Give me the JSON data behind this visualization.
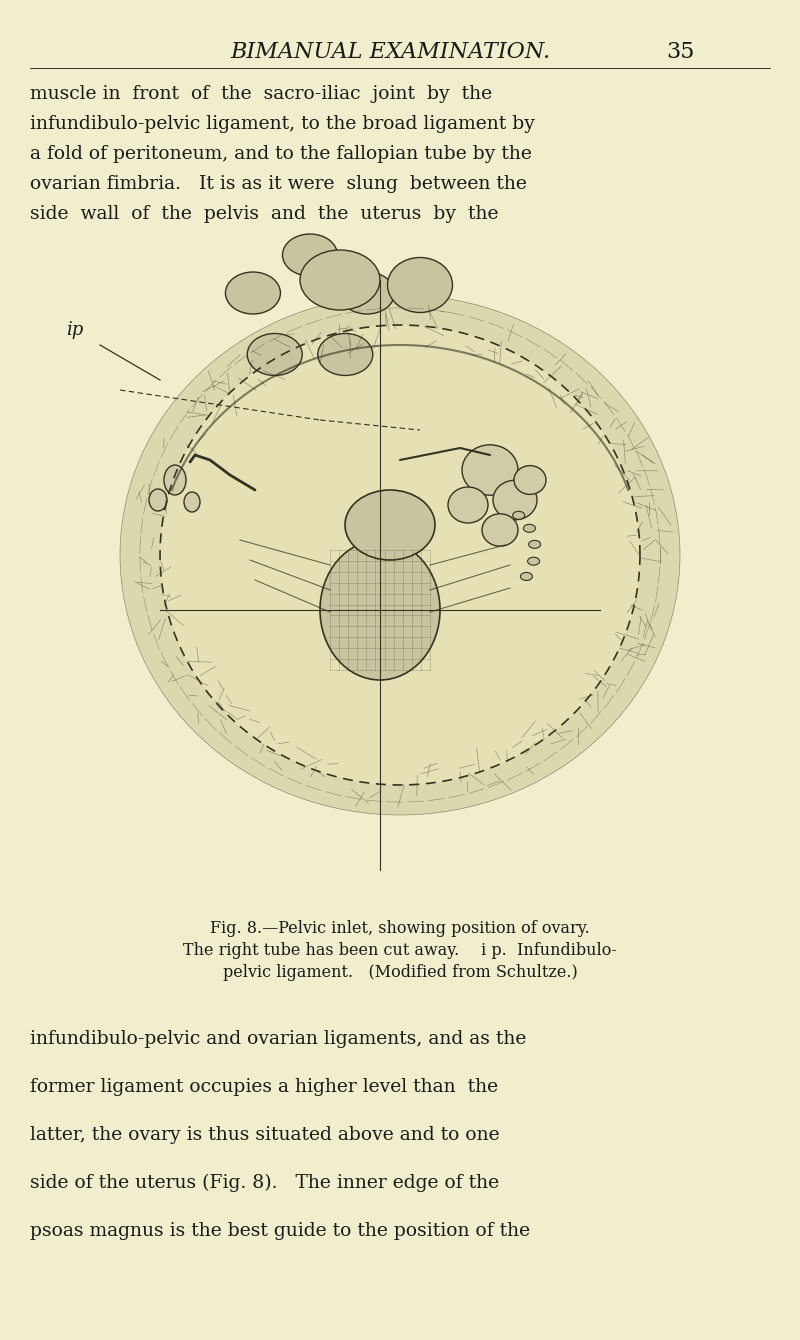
{
  "bg_color": "#f0eecc",
  "header_text": "BIMANUAL EXAMINATION.",
  "page_number": "35",
  "top_text_lines": [
    "muscle in  front  of  the  sacro-iliac  joint  by  the",
    "infundibulo-pelvic ligament, to the broad ligament by",
    "a fold of peritoneum, and to the fallopian tube by the",
    "ovarian fimbria.   It is as it were  slung  between the",
    "side  wall  of  the  pelvis  and  the  uterus  by  the"
  ],
  "caption_lines": [
    "Fig. 8.—Pelvic inlet, showing position of ovary.",
    "The right tube has been cut away.     i p.  Infundibulo-",
    "pelvic ligament.   (Modified from Schultze.)"
  ],
  "bottom_text_lines": [
    "infundibulo-pelvic and ovarian ligaments, and as the",
    "former ligament occupies a higher level than  the",
    "latter, the ovary is thus situated above and to one",
    "side of the uterus (Fig. 8).   The inner edge of the",
    "psoas magnus is the best guide to the position of the"
  ],
  "label_ip": "ip",
  "text_color": "#1a1a1a",
  "header_color": "#1a1a1a"
}
